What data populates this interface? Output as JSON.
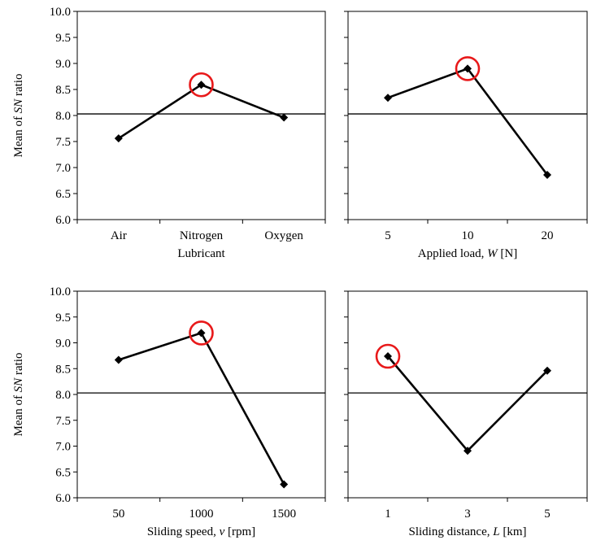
{
  "chart_data": [
    {
      "type": "line",
      "categories": [
        "Air",
        "Nitrogen",
        "Oxygen"
      ],
      "values": [
        7.56,
        8.59,
        7.96
      ],
      "xlabel": [
        "Lubricant"
      ],
      "ylabel": [
        "Mean of ",
        "SN",
        " ratio"
      ],
      "ylim": [
        6.0,
        10.0
      ],
      "yticks": [
        "6.0",
        "6.5",
        "7.0",
        "7.5",
        "8.0",
        "8.5",
        "9.0",
        "9.5",
        "10.0"
      ],
      "reference_line": 8.03,
      "highlight_index": 1
    },
    {
      "type": "line",
      "categories": [
        "5",
        "10",
        "20"
      ],
      "values": [
        8.34,
        8.9,
        6.86
      ],
      "xlabel": [
        "Applied load, ",
        "W",
        " [N]"
      ],
      "ylabel": [],
      "ylim": [
        6.0,
        10.0
      ],
      "yticks": [],
      "reference_line": 8.03,
      "highlight_index": 1
    },
    {
      "type": "line",
      "categories": [
        "50",
        "1000",
        "1500"
      ],
      "values": [
        8.67,
        9.19,
        6.26
      ],
      "xlabel": [
        "Sliding speed, ",
        "v",
        " [rpm]"
      ],
      "ylabel": [
        "Mean of ",
        "SN",
        " ratio"
      ],
      "ylim": [
        6.0,
        10.0
      ],
      "yticks": [
        "6.0",
        "6.5",
        "7.0",
        "7.5",
        "8.0",
        "8.5",
        "9.0",
        "9.5",
        "10.0"
      ],
      "reference_line": 8.03,
      "highlight_index": 1
    },
    {
      "type": "line",
      "categories": [
        "1",
        "3",
        "5"
      ],
      "values": [
        8.74,
        6.91,
        8.46
      ],
      "xlabel": [
        "Sliding distance, ",
        "L",
        " [km]"
      ],
      "ylabel": [],
      "ylim": [
        6.0,
        10.0
      ],
      "yticks": [],
      "reference_line": 8.03,
      "highlight_index": 0
    }
  ],
  "colors": {
    "line": "#000000",
    "marker": "#000000",
    "highlight": "#e8191a",
    "axis": "#000000"
  }
}
